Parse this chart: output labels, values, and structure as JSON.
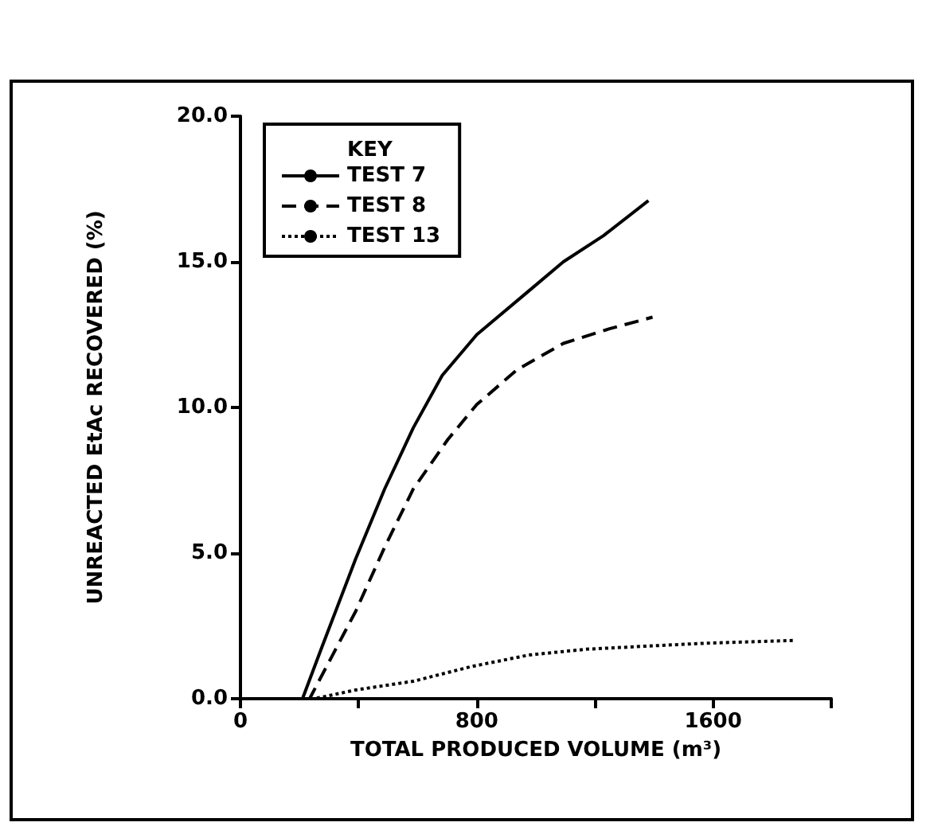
{
  "chart_data": {
    "type": "line",
    "xlabel": "TOTAL PRODUCED VOLUME (m³)",
    "ylabel": "UNREACTED EtAc RECOVERED (%)",
    "legend_title": "KEY",
    "legend": "top left",
    "xlim": [
      0,
      2000
    ],
    "xticks": [
      0,
      {
        "value": 400,
        "label": null
      },
      800,
      {
        "value": 1200,
        "label": null
      },
      1600,
      {
        "value": 2000,
        "label": null
      }
    ],
    "ylim": [
      0,
      20
    ],
    "yticks": [
      {
        "value": 0,
        "label": "0.0"
      },
      {
        "value": 5,
        "label": "5.0"
      },
      {
        "value": 10,
        "label": "10.0"
      },
      {
        "value": 15,
        "label": "15.0"
      },
      {
        "value": 20,
        "label": "20.0"
      }
    ],
    "grid": false,
    "marker": "none",
    "series": [
      {
        "name": "TEST 7",
        "color": "#000000",
        "line_style": "solid",
        "x": [
          0,
          210,
          273,
          390,
          488,
          585,
          683,
          800,
          976,
          1093,
          1229,
          1381
        ],
        "values": [
          0,
          0,
          1.7,
          4.8,
          7.2,
          9.3,
          11.1,
          12.5,
          14.0,
          15.0,
          15.9,
          17.1
        ]
      },
      {
        "name": "TEST 8",
        "color": "#000000",
        "line_style": "dashed",
        "x": [
          0,
          234,
          312,
          390,
          488,
          585,
          702,
          800,
          937,
          1093,
          1249,
          1395
        ],
        "values": [
          0,
          0,
          1.5,
          3.0,
          5.2,
          7.2,
          8.9,
          10.1,
          11.3,
          12.2,
          12.7,
          13.1
        ]
      },
      {
        "name": "TEST 13",
        "color": "#000000",
        "line_style": "dotted",
        "x": [
          0,
          250,
          390,
          585,
          780,
          976,
          1171,
          1366,
          1561,
          1873
        ],
        "values": [
          0,
          0,
          0.3,
          0.6,
          1.1,
          1.5,
          1.7,
          1.8,
          1.9,
          2.0
        ]
      }
    ]
  }
}
